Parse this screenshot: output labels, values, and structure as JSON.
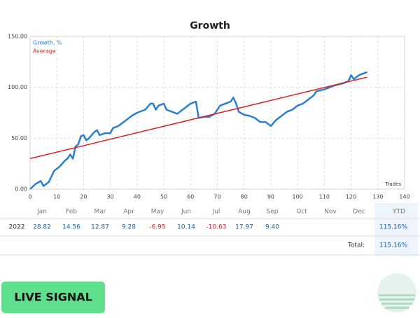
{
  "chart_data": {
    "type": "line",
    "title": "Growth",
    "xlabel": "Trades",
    "xlim": [
      0,
      140
    ],
    "xticks": [
      0,
      10,
      20,
      30,
      40,
      50,
      60,
      70,
      80,
      90,
      100,
      110,
      120,
      130,
      140
    ],
    "ylim": [
      0,
      150
    ],
    "yticks": [
      {
        "value": 0,
        "label": "0.00"
      },
      {
        "value": 50,
        "label": "50.00"
      },
      {
        "value": 100,
        "label": "100.00"
      },
      {
        "value": 150,
        "label": "150.00"
      }
    ],
    "grid": true,
    "legend": "top-left",
    "series": [
      {
        "name": "Growth, %",
        "color": "#2b7fd0",
        "x": [
          0,
          2,
          4,
          5,
          7,
          9,
          11,
          13,
          14,
          15,
          16,
          17,
          18,
          19,
          20,
          21,
          22,
          24,
          25,
          26,
          28,
          30,
          31,
          33,
          35,
          38,
          40,
          43,
          45,
          46,
          47,
          48,
          50,
          51,
          53,
          55,
          57,
          60,
          62,
          63,
          65,
          67,
          69,
          71,
          73,
          75,
          76,
          77,
          78,
          80,
          82,
          84,
          86,
          88,
          89,
          90,
          92,
          94,
          96,
          98,
          100,
          102,
          104,
          106,
          107,
          110,
          112,
          114,
          117,
          119,
          120,
          121,
          123,
          125,
          126
        ],
        "values": [
          0,
          5,
          8,
          3,
          7,
          18,
          22,
          28,
          30,
          34,
          30,
          42,
          44,
          52,
          53,
          48,
          50,
          56,
          58,
          53,
          55,
          55,
          60,
          62,
          66,
          72,
          75,
          78,
          84,
          84,
          78,
          82,
          84,
          78,
          76,
          74,
          78,
          84,
          86,
          70,
          71,
          71,
          74,
          82,
          84,
          86,
          90,
          84,
          76,
          73,
          72,
          70,
          66,
          66,
          64,
          62,
          68,
          72,
          76,
          78,
          82,
          84,
          88,
          92,
          96,
          98,
          100,
          102,
          104,
          106,
          112,
          108,
          112,
          114,
          115
        ]
      },
      {
        "name": "Average",
        "color": "#d9232a",
        "x": [
          0,
          126
        ],
        "values": [
          30,
          110
        ]
      }
    ]
  },
  "table": {
    "months": [
      "Jan",
      "Feb",
      "Mar",
      "Apr",
      "May",
      "Jun",
      "Jul",
      "Aug",
      "Sep",
      "Oct",
      "Nov",
      "Dec"
    ],
    "ytd_header": "YTD",
    "year": "2022",
    "values": [
      "28.82",
      "14.56",
      "12.87",
      "9.28",
      "-6.95",
      "10.14",
      "-10.63",
      "17.97",
      "9.40",
      null,
      null,
      null
    ],
    "ytd": "115.16%",
    "total_label": "Total:",
    "total": "115.16%"
  },
  "button": "LIVE SIGNAL"
}
